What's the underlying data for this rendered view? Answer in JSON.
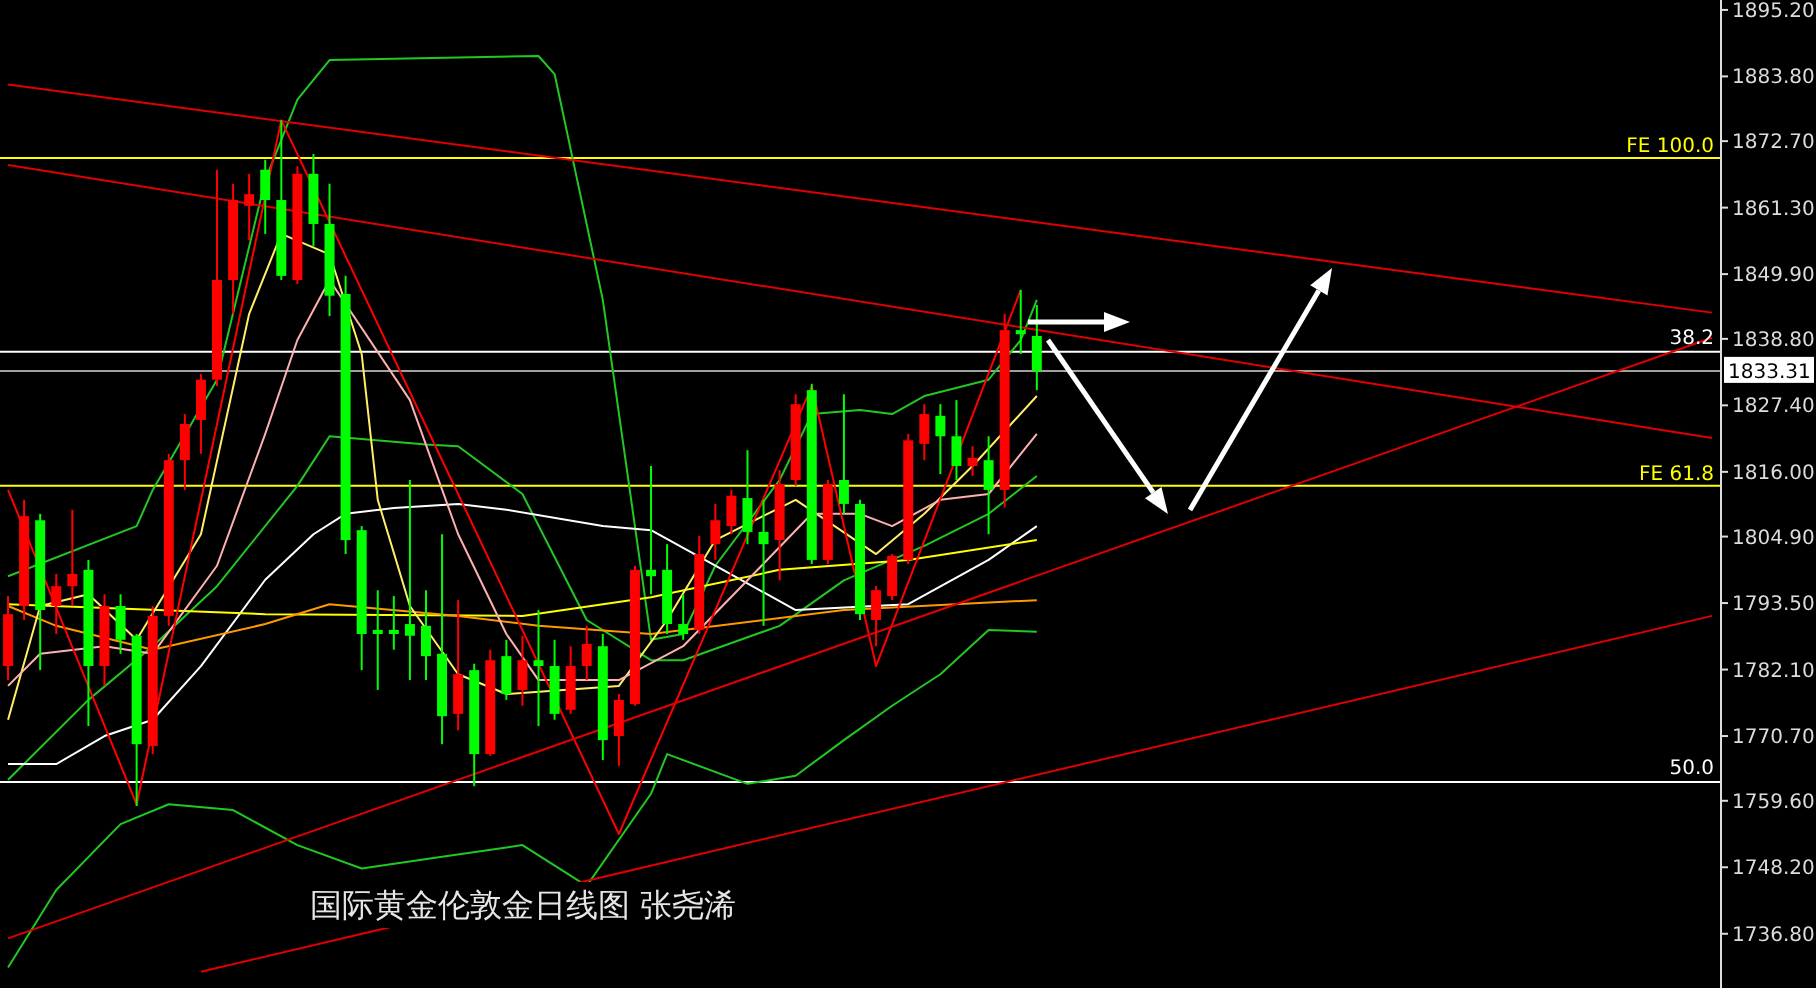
{
  "chart_data": {
    "type": "candlestick",
    "title": "国际黄金伦敦金日线图 张尧浠",
    "categories": [
      null,
      null,
      null,
      null,
      null,
      null,
      null,
      null,
      null,
      null,
      null,
      null,
      null,
      null,
      null,
      null,
      null,
      null,
      null,
      null,
      null,
      null,
      null,
      null,
      null,
      null,
      null,
      null,
      null,
      null,
      null,
      null,
      null,
      null,
      null,
      null,
      null,
      null,
      null,
      null,
      null,
      null,
      null,
      null,
      null,
      null,
      null,
      null,
      null,
      null,
      null,
      null,
      null,
      null,
      null,
      null,
      null,
      null,
      null,
      null,
      null,
      null,
      null,
      null,
      null,
      null,
      null,
      null,
      null,
      null,
      null,
      null,
      null,
      null,
      null,
      null,
      null,
      null,
      null,
      null,
      null,
      null,
      null,
      null,
      null,
      null,
      null,
      null,
      null,
      null,
      null,
      null,
      null,
      null,
      null,
      null,
      null,
      null,
      null,
      null,
      null,
      null,
      null,
      null,
      null,
      null,
      null
    ],
    "ohlc": [
      [
        1782.7,
        1794.7,
        1780.3,
        1791.6
      ],
      [
        1793.0,
        1811.2,
        1790.6,
        1808.4
      ],
      [
        1807.7,
        1808.8,
        1782.0,
        1792.3
      ],
      [
        1793.0,
        1798.5,
        1788.2,
        1796.4
      ],
      [
        1796.4,
        1809.5,
        1793.0,
        1798.5
      ],
      [
        1799.2,
        1800.9,
        1772.4,
        1782.7
      ],
      [
        1782.7,
        1795.0,
        1779.3,
        1793.0
      ],
      [
        1793.0,
        1795.0,
        1784.8,
        1787.2
      ],
      [
        1787.9,
        1788.2,
        1758.7,
        1769.3
      ],
      [
        1769.0,
        1793.0,
        1767.6,
        1791.3
      ],
      [
        1791.3,
        1819.1,
        1789.6,
        1818.0
      ],
      [
        1818.0,
        1825.9,
        1812.9,
        1824.2
      ],
      [
        1824.9,
        1832.8,
        1819.1,
        1831.8
      ],
      [
        1831.8,
        1867.8,
        1830.7,
        1848.9
      ],
      [
        1848.9,
        1865.4,
        1843.1,
        1862.6
      ],
      [
        1861.6,
        1867.1,
        1855.7,
        1863.6
      ],
      [
        1867.8,
        1869.5,
        1856.8,
        1862.6
      ],
      [
        1862.6,
        1876.3,
        1848.9,
        1849.6
      ],
      [
        1848.9,
        1868.4,
        1848.2,
        1867.1
      ],
      [
        1867.1,
        1870.5,
        1854.7,
        1858.5
      ],
      [
        1858.5,
        1865.4,
        1842.7,
        1846.2
      ],
      [
        1846.5,
        1849.6,
        1801.9,
        1804.3
      ],
      [
        1806.0,
        1806.7,
        1782.0,
        1788.2
      ],
      [
        1788.9,
        1795.7,
        1778.6,
        1788.2
      ],
      [
        1788.9,
        1794.7,
        1785.5,
        1788.2
      ],
      [
        1789.9,
        1814.6,
        1780.3,
        1787.9
      ],
      [
        1789.6,
        1795.7,
        1780.3,
        1784.4
      ],
      [
        1784.8,
        1805.3,
        1769.3,
        1774.1
      ],
      [
        1774.5,
        1794.0,
        1771.7,
        1781.3
      ],
      [
        1782.0,
        1783.1,
        1762.1,
        1767.6
      ],
      [
        1767.6,
        1785.5,
        1767.3,
        1783.7
      ],
      [
        1784.4,
        1787.2,
        1776.9,
        1777.9
      ],
      [
        1778.6,
        1787.9,
        1775.9,
        1783.7
      ],
      [
        1783.7,
        1792.3,
        1772.4,
        1782.7
      ],
      [
        1782.7,
        1787.2,
        1773.5,
        1774.5
      ],
      [
        1775.2,
        1786.1,
        1774.5,
        1782.7
      ],
      [
        1782.7,
        1789.6,
        1780.3,
        1786.5
      ],
      [
        1786.1,
        1788.2,
        1766.6,
        1770.0
      ],
      [
        1770.7,
        1777.9,
        1765.6,
        1776.9
      ],
      [
        1776.2,
        1799.9,
        1775.9,
        1799.2
      ],
      [
        1799.2,
        1817.0,
        1795.0,
        1798.1
      ],
      [
        1799.2,
        1803.6,
        1788.2,
        1789.9
      ],
      [
        1789.9,
        1795.0,
        1787.2,
        1788.2
      ],
      [
        1788.9,
        1805.0,
        1788.2,
        1801.9
      ],
      [
        1803.6,
        1810.5,
        1800.9,
        1807.7
      ],
      [
        1806.7,
        1812.9,
        1805.3,
        1811.9
      ],
      [
        1811.5,
        1819.7,
        1803.6,
        1805.7
      ],
      [
        1805.7,
        1811.2,
        1789.6,
        1803.6
      ],
      [
        1804.3,
        1816.3,
        1797.4,
        1813.9
      ],
      [
        1814.6,
        1829.3,
        1813.6,
        1827.6
      ],
      [
        1830.0,
        1831.1,
        1800.2,
        1800.9
      ],
      [
        1800.9,
        1814.6,
        1800.2,
        1813.9
      ],
      [
        1814.6,
        1829.3,
        1808.8,
        1810.5
      ],
      [
        1810.5,
        1811.2,
        1790.6,
        1791.6
      ],
      [
        1790.6,
        1796.4,
        1786.1,
        1795.7
      ],
      [
        1794.7,
        1801.9,
        1794.0,
        1801.6
      ],
      [
        1800.9,
        1822.5,
        1800.2,
        1821.4
      ],
      [
        1820.8,
        1827.6,
        1818.0,
        1825.9
      ],
      [
        1825.6,
        1827.6,
        1815.6,
        1822.1
      ],
      [
        1822.1,
        1828.3,
        1814.6,
        1817.0
      ],
      [
        1817.0,
        1820.4,
        1815.3,
        1818.4
      ],
      [
        1818.0,
        1822.1,
        1805.3,
        1812.9
      ],
      [
        1812.9,
        1843.1,
        1809.9,
        1840.3
      ],
      [
        1840.3,
        1847.2,
        1836.2,
        1839.6
      ],
      [
        1839.3,
        1844.6,
        1830.0,
        1833.3
      ],
      null,
      null,
      null,
      null,
      null,
      null,
      null,
      null,
      null,
      null,
      null,
      null,
      null,
      null,
      null,
      null,
      null,
      null,
      null,
      null,
      null,
      null,
      null,
      null,
      null,
      null,
      null,
      null,
      null,
      null,
      null,
      null,
      null,
      null,
      null,
      null,
      null,
      null,
      null,
      null,
      null,
      null
    ],
    "colors": [
      "#ff0000",
      "#ff0000",
      "#00ff00",
      "#ff0000",
      "#ff0000",
      "#00ff00",
      "#ff0000",
      "#00ff00",
      "#00ff00",
      "#ff0000",
      "#ff0000",
      "#ff0000",
      "#ff0000",
      "#ff0000",
      "#ff0000",
      "#ff0000",
      "#00ff00",
      "#00ff00",
      "#ff0000",
      "#00ff00",
      "#00ff00",
      "#00ff00",
      "#00ff00",
      "#00ff00",
      "#00ff00",
      "#00ff00",
      "#00ff00",
      "#00ff00",
      "#ff0000",
      "#00ff00",
      "#ff0000",
      "#00ff00",
      "#ff0000",
      "#00ff00",
      "#00ff00",
      "#ff0000",
      "#ff0000",
      "#00ff00",
      "#ff0000",
      "#ff0000",
      "#00ff00",
      "#00ff00",
      "#00ff00",
      "#ff0000",
      "#ff0000",
      "#ff0000",
      "#00ff00",
      "#00ff00",
      "#ff0000",
      "#ff0000",
      "#00ff00",
      "#ff0000",
      "#00ff00",
      "#00ff00",
      "#ff0000",
      "#ff0000",
      "#ff0000",
      "#ff0000",
      "#00ff00",
      "#00ff00",
      "#ff0000",
      "#00ff00",
      "#ff0000",
      "#00ff00",
      "#00ff00",
      null,
      null,
      null,
      null,
      null,
      null,
      null,
      null,
      null,
      null,
      null,
      null,
      null,
      null,
      null,
      null,
      null,
      null,
      null,
      null,
      null,
      null,
      null,
      null,
      null,
      null,
      null,
      null,
      null,
      null,
      null,
      null,
      null,
      null,
      null,
      null,
      null,
      null,
      null,
      null,
      null,
      null
    ],
    "series": [
      {
        "type": "line",
        "color": "#22c822",
        "values": [
          1798.1,
          null,
          null,
          null,
          null,
          null,
          null,
          null,
          1806.7,
          1812.9,
          null,
          null,
          null,
          1831.8,
          null,
          null,
          1866.0,
          null,
          1879.8,
          null,
          1886.6,
          null,
          null,
          null,
          null,
          null,
          null,
          null,
          null,
          null,
          null,
          null,
          null,
          1887.3,
          1884.2,
          null,
          null,
          1845.5,
          null,
          null,
          1787.2,
          null,
          1788.2,
          null,
          1799.9,
          null,
          null,
          null,
          1814.6,
          null,
          1825.9,
          null,
          null,
          1826.6,
          null,
          1825.9,
          null,
          1829.0,
          null,
          null,
          null,
          1831.8,
          null,
          1838.6,
          1845.5,
          null,
          null,
          null,
          null,
          null,
          null,
          null,
          null,
          null,
          null,
          null,
          null,
          null,
          null,
          null,
          null,
          null,
          null,
          null,
          null,
          null,
          null,
          null,
          null,
          null,
          null,
          null,
          null,
          null,
          null,
          null,
          null,
          null,
          null,
          null,
          null,
          null,
          null,
          null,
          null,
          null,
          null
        ]
      },
      {
        "type": "line",
        "color": "#22c822",
        "values": [
          1763.2,
          null,
          null,
          null,
          null,
          1776.9,
          null,
          null,
          null,
          1786.1,
          null,
          null,
          null,
          1796.4,
          null,
          null,
          null,
          null,
          1813.6,
          null,
          1822.1,
          null,
          null,
          null,
          null,
          null,
          1820.7,
          null,
          1820.4,
          null,
          null,
          null,
          1812.2,
          null,
          null,
          null,
          1790.6,
          null,
          null,
          null,
          1783.7,
          null,
          1783.7,
          null,
          null,
          null,
          null,
          null,
          1789.6,
          null,
          null,
          null,
          1797.4,
          null,
          null,
          null,
          null,
          1803.3,
          null,
          null,
          null,
          1808.8,
          null,
          null,
          1815.3,
          null,
          null,
          null,
          null,
          null,
          null,
          null,
          null,
          null,
          null,
          null,
          null,
          null,
          null,
          null,
          null,
          null,
          null,
          null,
          null,
          null,
          null,
          null,
          null,
          null,
          null,
          null,
          null,
          null,
          null,
          null,
          null,
          null,
          null,
          null,
          null,
          null,
          null,
          null,
          null,
          null,
          null
        ]
      },
      {
        "type": "line",
        "color": "#22c822",
        "values": [
          1731.0,
          null,
          null,
          1744.3,
          null,
          null,
          null,
          1755.6,
          null,
          null,
          1759.0,
          null,
          null,
          null,
          1758.0,
          null,
          null,
          null,
          1752.0,
          null,
          null,
          null,
          1748.0,
          null,
          null,
          null,
          null,
          1750.0,
          null,
          null,
          null,
          null,
          1752.0,
          null,
          null,
          null,
          1745.0,
          null,
          null,
          null,
          1760.8,
          1767.6,
          null,
          null,
          null,
          null,
          1762.5,
          null,
          null,
          1763.9,
          null,
          null,
          1770.0,
          null,
          null,
          1775.9,
          null,
          null,
          1781.3,
          null,
          null,
          1788.9,
          null,
          null,
          1788.6,
          null,
          null,
          null,
          null,
          null,
          null,
          null,
          null,
          null,
          null,
          null,
          null,
          null,
          null,
          null,
          null,
          null,
          null,
          null,
          null,
          null,
          null,
          null,
          null,
          null,
          null,
          null,
          null,
          null,
          null,
          null,
          null,
          null,
          null,
          null,
          null,
          null,
          null,
          null,
          null,
          null,
          null
        ]
      },
      {
        "type": "line",
        "color": "#ffffff",
        "values": [
          1765.9,
          null,
          null,
          1765.9,
          null,
          null,
          1770.7,
          null,
          null,
          1773.5,
          null,
          null,
          1782.7,
          null,
          null,
          null,
          1797.5,
          null,
          null,
          1805.3,
          null,
          1808.8,
          null,
          null,
          1809.8,
          null,
          null,
          null,
          1810.5,
          null,
          null,
          1809.5,
          null,
          null,
          null,
          null,
          null,
          1806.7,
          null,
          null,
          1806.0,
          null,
          null,
          null,
          1799.9,
          null,
          null,
          null,
          null,
          1792.3,
          null,
          null,
          null,
          null,
          null,
          null,
          1793.3,
          null,
          null,
          null,
          null,
          1800.9,
          null,
          null,
          1806.7,
          null,
          null,
          null,
          null,
          null,
          null,
          null,
          null,
          null,
          null,
          null,
          null,
          null,
          null,
          null,
          null,
          null,
          null,
          null,
          null,
          null,
          null,
          null,
          null,
          null,
          null,
          null,
          null,
          null,
          null,
          null,
          null,
          null,
          null,
          null,
          null,
          null,
          null,
          null,
          null,
          null,
          null
        ]
      },
      {
        "type": "line",
        "color": "#ffff00",
        "values": [
          1793.3,
          null,
          null,
          null,
          null,
          null,
          null,
          null,
          null,
          null,
          null,
          null,
          null,
          null,
          null,
          null,
          1791.6,
          null,
          null,
          null,
          null,
          null,
          null,
          null,
          null,
          null,
          null,
          null,
          null,
          null,
          null,
          null,
          1791.3,
          null,
          null,
          null,
          null,
          null,
          null,
          null,
          1794.5,
          null,
          null,
          null,
          null,
          null,
          null,
          null,
          1799.2,
          null,
          null,
          null,
          null,
          null,
          null,
          null,
          1800.9,
          null,
          null,
          null,
          null,
          null,
          null,
          null,
          1804.3,
          null,
          null,
          null,
          null,
          null,
          null,
          null,
          null,
          null,
          null,
          null,
          null,
          null,
          null,
          null,
          null,
          null,
          null,
          null,
          null,
          null,
          null,
          null,
          null,
          null,
          null,
          null,
          null,
          null,
          null,
          null,
          null,
          null,
          null,
          null,
          null,
          null,
          null,
          null,
          null,
          null,
          null
        ]
      },
      {
        "type": "line",
        "color": "#ff9900",
        "values": [
          1793.0,
          null,
          null,
          1789.6,
          null,
          null,
          null,
          null,
          null,
          1785.5,
          null,
          null,
          null,
          null,
          null,
          null,
          1789.9,
          null,
          null,
          null,
          1793.3,
          null,
          null,
          null,
          null,
          null,
          null,
          null,
          1791.3,
          null,
          null,
          null,
          null,
          1789.6,
          null,
          null,
          null,
          null,
          null,
          null,
          1788.2,
          null,
          null,
          null,
          null,
          null,
          null,
          null,
          null,
          null,
          null,
          null,
          1792.3,
          null,
          null,
          null,
          null,
          null,
          null,
          null,
          null,
          null,
          null,
          null,
          1794.0,
          null,
          null,
          null,
          null,
          null,
          null,
          null,
          null,
          null,
          null,
          null,
          null,
          null,
          null,
          null,
          null,
          null,
          null,
          null,
          null,
          null,
          null,
          null,
          null,
          null,
          null,
          null,
          null,
          null,
          null,
          null,
          null,
          null,
          null,
          null,
          null,
          null,
          null,
          null,
          null,
          null,
          null
        ]
      },
      {
        "type": "line",
        "color": "#ffee66",
        "values": [
          1773.5,
          null,
          1793.0,
          null,
          null,
          1795.0,
          null,
          null,
          1787.2,
          null,
          null,
          null,
          1805.3,
          null,
          null,
          1843.1,
          null,
          1856.8,
          null,
          null,
          1853.3,
          null,
          1836.2,
          1811.2,
          null,
          1793.0,
          null,
          null,
          1781.3,
          null,
          null,
          1777.9,
          null,
          null,
          null,
          null,
          null,
          null,
          1779.3,
          null,
          null,
          1790.6,
          null,
          null,
          1804.3,
          null,
          null,
          null,
          null,
          1811.2,
          null,
          null,
          null,
          null,
          1801.9,
          null,
          null,
          1808.8,
          null,
          null,
          1817.0,
          null,
          null,
          null,
          1829.0,
          null,
          null,
          null,
          null,
          null,
          null,
          null,
          null,
          null,
          null,
          null,
          null,
          null,
          null,
          null,
          null,
          null,
          null,
          null,
          null,
          null,
          null,
          null,
          null,
          null,
          null,
          null,
          null,
          null,
          null,
          null,
          null,
          null,
          null,
          null,
          null,
          null,
          null,
          null,
          null,
          null,
          null
        ]
      },
      {
        "type": "line",
        "color": "#ffb0b0",
        "values": [
          1779.3,
          null,
          1784.8,
          null,
          null,
          null,
          1786.1,
          null,
          null,
          1784.8,
          null,
          null,
          null,
          1799.9,
          null,
          null,
          1822.5,
          null,
          1838.6,
          null,
          1848.9,
          null,
          null,
          null,
          null,
          1828.3,
          null,
          null,
          1805.3,
          null,
          null,
          1788.2,
          null,
          1780.3,
          null,
          null,
          null,
          null,
          1780.3,
          null,
          null,
          null,
          1786.1,
          null,
          null,
          null,
          1797.4,
          null,
          null,
          null,
          1808.8,
          null,
          null,
          1808.8,
          null,
          1806.7,
          null,
          null,
          1811.2,
          null,
          null,
          1812.2,
          null,
          null,
          1822.5,
          null,
          null,
          null,
          null,
          null,
          null,
          null,
          null,
          null,
          null,
          null,
          null,
          null,
          null,
          null,
          null,
          null,
          null,
          null,
          null,
          null,
          null,
          null,
          null,
          null,
          null,
          null,
          null,
          null,
          null,
          null,
          null,
          null,
          null,
          null,
          null,
          null,
          null,
          null,
          null,
          null,
          null
        ]
      },
      {
        "type": "line",
        "color": "#ff0000",
        "values": [
          1812.9,
          null,
          null,
          null,
          null,
          null,
          null,
          null,
          1759.0,
          null,
          null,
          null,
          null,
          null,
          null,
          null,
          null,
          1876.3,
          null,
          null,
          null,
          null,
          null,
          null,
          null,
          null,
          null,
          null,
          null,
          null,
          null,
          null,
          null,
          null,
          null,
          null,
          null,
          null,
          1753.9,
          null,
          null,
          null,
          null,
          null,
          null,
          null,
          null,
          null,
          null,
          null,
          1830.7,
          null,
          null,
          null,
          1782.7,
          null,
          null,
          null,
          null,
          null,
          null,
          null,
          null,
          1847.2,
          null,
          null,
          null,
          null,
          null,
          null,
          null,
          null,
          null,
          null,
          null,
          null,
          null,
          null,
          null,
          null,
          null,
          null,
          null,
          null,
          null,
          null,
          null,
          null,
          null,
          null,
          null,
          null,
          null,
          null,
          null,
          null,
          null,
          null,
          null,
          null,
          null,
          null,
          null,
          null,
          null,
          null,
          null
        ]
      },
      {
        "type": "line",
        "color": "#e00000",
        "values": [
          1882.4,
          null,
          null,
          null,
          null,
          null,
          null,
          null,
          null,
          null,
          null,
          null,
          null,
          null,
          null,
          null,
          null,
          null,
          null,
          null,
          null,
          null,
          null,
          null,
          null,
          null,
          null,
          null,
          null,
          null,
          null,
          null,
          null,
          null,
          null,
          null,
          null,
          null,
          null,
          null,
          null,
          null,
          null,
          null,
          null,
          null,
          null,
          null,
          null,
          null,
          null,
          null,
          null,
          null,
          null,
          null,
          null,
          null,
          null,
          null,
          null,
          null,
          null,
          null,
          null,
          null,
          null,
          null,
          null,
          null,
          null,
          null,
          null,
          null,
          null,
          null,
          null,
          null,
          null,
          null,
          null,
          null,
          null,
          null,
          null,
          null,
          null,
          null,
          null,
          null,
          null,
          null,
          null,
          null,
          null,
          null,
          null,
          null,
          null,
          null,
          null,
          null,
          null,
          null,
          null,
          null,
          1843.3
        ]
      },
      {
        "type": "line",
        "color": "#e00000",
        "values": [
          1868.6,
          null,
          null,
          null,
          null,
          null,
          null,
          null,
          null,
          null,
          null,
          null,
          null,
          null,
          null,
          null,
          null,
          null,
          null,
          null,
          null,
          null,
          null,
          null,
          null,
          null,
          null,
          null,
          null,
          null,
          null,
          null,
          null,
          null,
          null,
          null,
          null,
          null,
          null,
          null,
          null,
          null,
          null,
          null,
          null,
          null,
          null,
          null,
          null,
          null,
          null,
          null,
          null,
          null,
          null,
          null,
          null,
          null,
          null,
          null,
          null,
          null,
          null,
          null,
          null,
          null,
          null,
          null,
          null,
          null,
          null,
          null,
          null,
          null,
          null,
          null,
          null,
          null,
          null,
          null,
          null,
          null,
          null,
          null,
          null,
          null,
          null,
          null,
          null,
          null,
          null,
          null,
          null,
          null,
          null,
          null,
          null,
          null,
          null,
          null,
          null,
          null,
          null,
          null,
          null,
          null,
          1821.8
        ]
      },
      {
        "type": "line",
        "color": "#e00000",
        "values": [
          1736.0,
          null,
          null,
          null,
          null,
          null,
          null,
          null,
          null,
          null,
          null,
          null,
          null,
          null,
          null,
          null,
          null,
          null,
          null,
          null,
          null,
          null,
          null,
          null,
          null,
          null,
          null,
          null,
          null,
          null,
          null,
          null,
          null,
          null,
          null,
          null,
          null,
          null,
          null,
          null,
          null,
          null,
          null,
          null,
          null,
          null,
          null,
          null,
          null,
          null,
          null,
          null,
          null,
          null,
          null,
          null,
          null,
          null,
          null,
          null,
          null,
          null,
          null,
          null,
          null,
          null,
          null,
          null,
          null,
          null,
          null,
          null,
          null,
          null,
          null,
          null,
          null,
          null,
          null,
          null,
          null,
          null,
          null,
          null,
          null,
          null,
          null,
          null,
          null,
          null,
          null,
          null,
          null,
          null,
          null,
          null,
          null,
          null,
          null,
          null,
          null,
          null,
          null,
          null,
          null,
          null,
          1839.0
        ]
      },
      {
        "type": "line",
        "color": "#e00000",
        "values": [
          null,
          null,
          null,
          null,
          null,
          null,
          null,
          null,
          null,
          null,
          null,
          null,
          1730.3,
          null,
          null,
          null,
          null,
          null,
          null,
          null,
          null,
          null,
          null,
          null,
          null,
          null,
          null,
          null,
          null,
          null,
          null,
          null,
          null,
          null,
          null,
          null,
          null,
          null,
          null,
          null,
          null,
          null,
          null,
          null,
          null,
          null,
          null,
          null,
          null,
          null,
          null,
          null,
          null,
          null,
          null,
          null,
          null,
          null,
          null,
          null,
          null,
          null,
          null,
          null,
          null,
          null,
          null,
          null,
          null,
          null,
          null,
          null,
          null,
          null,
          null,
          null,
          null,
          null,
          null,
          null,
          null,
          null,
          null,
          null,
          null,
          null,
          null,
          null,
          null,
          null,
          null,
          null,
          null,
          null,
          null,
          null,
          null,
          null,
          null,
          null,
          null,
          null,
          null,
          null,
          null,
          null,
          1791.3
        ]
      }
    ],
    "ylim": [
      1727.5,
      1896.9
    ],
    "yticks": [
      {
        "value": 1895.2,
        "label": "1895.20"
      },
      {
        "value": 1883.8,
        "label": "1883.80"
      },
      {
        "value": 1872.7,
        "label": "1872.70"
      },
      {
        "value": 1861.3,
        "label": "1861.30"
      },
      {
        "value": 1849.9,
        "label": "1849.90"
      },
      {
        "value": 1838.8,
        "label": "1838.80"
      },
      {
        "value": 1827.4,
        "label": "1827.40"
      },
      {
        "value": 1816,
        "label": "1816.00"
      },
      {
        "value": 1804.9,
        "label": "1804.90"
      },
      {
        "value": 1793.5,
        "label": "1793.50"
      },
      {
        "value": 1782.1,
        "label": "1782.10"
      },
      {
        "value": 1770.7,
        "label": "1770.70"
      },
      {
        "value": 1759.6,
        "label": "1759.60"
      },
      {
        "value": 1748.2,
        "label": "1748.20"
      },
      {
        "value": 1736.8,
        "label": "1736.80"
      }
    ],
    "tick_labels": "y",
    "ref_lines": [
      {
        "axis": "y",
        "value": 1869.8,
        "label": "FE 100.0",
        "color": "#ffff00"
      },
      {
        "axis": "y",
        "value": 1836.6,
        "color": "#ffffff"
      },
      {
        "axis": "y",
        "value": 1813.6,
        "label": "FE 61.8",
        "color": "#ffff00"
      },
      {
        "axis": "y",
        "value": 1762.8,
        "color": "#ffffff"
      },
      {
        "axis": "y",
        "value": 1833.31,
        "label": "1833.31",
        "color": "#a0a0a0"
      }
    ],
    "annotations": [
      {
        "text": "38.2",
        "y": 1836.6
      },
      {
        "text": "50.0",
        "y": 1762.8
      }
    ]
  }
}
